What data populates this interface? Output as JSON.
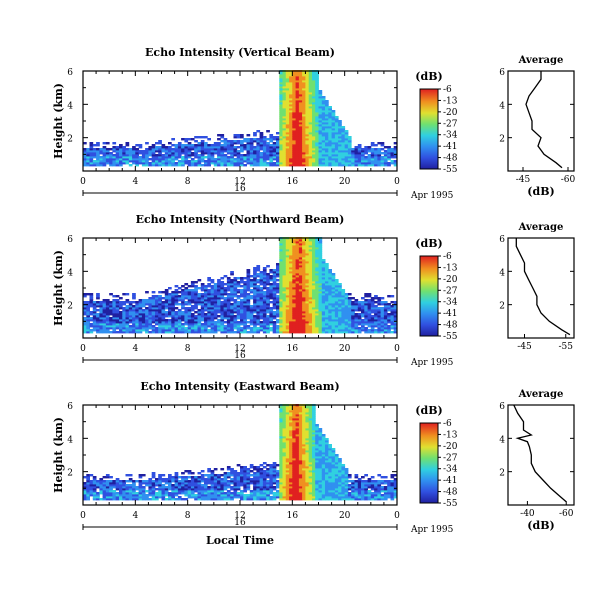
{
  "chart_data": [
    {
      "type": "heatmap",
      "title": "Echo Intensity (Vertical Beam)",
      "ylabel": "Height (km)",
      "xlim": [
        0,
        24
      ],
      "ylim": [
        0,
        6
      ],
      "xticks": [
        "0",
        "4",
        "8",
        "12",
        "16",
        "20",
        "0"
      ],
      "yticks": [
        "2",
        "4",
        "6"
      ],
      "date_label": "16",
      "date_suffix": "Apr 1995",
      "colorbar": {
        "unit": "(dB)",
        "labels": [
          "-6",
          "-13",
          "-20",
          "-27",
          "-34",
          "-41",
          "-48",
          "-55"
        ]
      },
      "average": {
        "title": "Average",
        "xlabel": "(dB)",
        "xticks": [
          "-45",
          "-60"
        ],
        "xlim": [
          -40,
          -62
        ],
        "profile": {
          "height": [
            0.2,
            0.5,
            1,
            1.5,
            2,
            2.5,
            3,
            3.5,
            4,
            4.5,
            5,
            5.5,
            6
          ],
          "db": [
            -58,
            -56,
            -52,
            -50,
            -51,
            -48,
            -48,
            -47,
            -46,
            -47,
            -49,
            -51,
            -51
          ]
        }
      },
      "echo_base_height_km": 1.3,
      "convection_band_hours": [
        15.0,
        17.8
      ]
    },
    {
      "type": "heatmap",
      "title": "Echo Intensity (Northward Beam)",
      "ylabel": "Height (km)",
      "xlim": [
        0,
        24
      ],
      "ylim": [
        0,
        6
      ],
      "xticks": [
        "0",
        "4",
        "8",
        "12",
        "16",
        "20",
        "0"
      ],
      "yticks": [
        "2",
        "4",
        "6"
      ],
      "date_label": "16",
      "date_suffix": "Apr 1995",
      "colorbar": {
        "unit": "(dB)",
        "labels": [
          "-6",
          "-13",
          "-20",
          "-27",
          "-34",
          "-41",
          "-48",
          "-55"
        ]
      },
      "average": {
        "title": "Average",
        "xlabel": "",
        "xticks": [
          "-45",
          "-55"
        ],
        "xlim": [
          -41,
          -57
        ],
        "profile": {
          "height": [
            0.2,
            0.5,
            1,
            1.5,
            2,
            2.5,
            3,
            3.5,
            4,
            4.5,
            5,
            5.5,
            6
          ],
          "db": [
            -56,
            -54,
            -51,
            -49,
            -48,
            -48,
            -47,
            -46,
            -45,
            -45,
            -44,
            -43,
            -43
          ]
        }
      },
      "echo_base_height_km": 2.2,
      "convection_band_hours": [
        15.0,
        18.0
      ]
    },
    {
      "type": "heatmap",
      "title": "Echo Intensity (Eastward Beam)",
      "ylabel": "Height (km)",
      "xlabel": "Local Time",
      "xlim": [
        0,
        24
      ],
      "ylim": [
        0,
        6
      ],
      "xticks": [
        "0",
        "4",
        "8",
        "12",
        "16",
        "20",
        "0"
      ],
      "yticks": [
        "2",
        "4",
        "6"
      ],
      "date_label": "16",
      "date_suffix": "Apr 1995",
      "colorbar": {
        "unit": "(dB)",
        "labels": [
          "-6",
          "-13",
          "-20",
          "-27",
          "-34",
          "-41",
          "-48",
          "-55"
        ]
      },
      "average": {
        "title": "Average",
        "xlabel": "(dB)",
        "xticks": [
          "-40",
          "-60"
        ],
        "xlim": [
          -30,
          -64
        ],
        "profile": {
          "height": [
            0.2,
            0.5,
            1,
            1.5,
            2,
            2.5,
            3,
            3.5,
            3.8,
            4.0,
            4.2,
            4.5,
            5,
            5.5,
            6
          ],
          "db": [
            -60,
            -57,
            -52,
            -48,
            -44,
            -42,
            -42,
            -41,
            -40,
            -35,
            -42,
            -38,
            -38,
            -35,
            -33
          ]
        }
      },
      "echo_base_height_km": 1.4,
      "convection_band_hours": [
        15.0,
        17.6
      ]
    }
  ]
}
